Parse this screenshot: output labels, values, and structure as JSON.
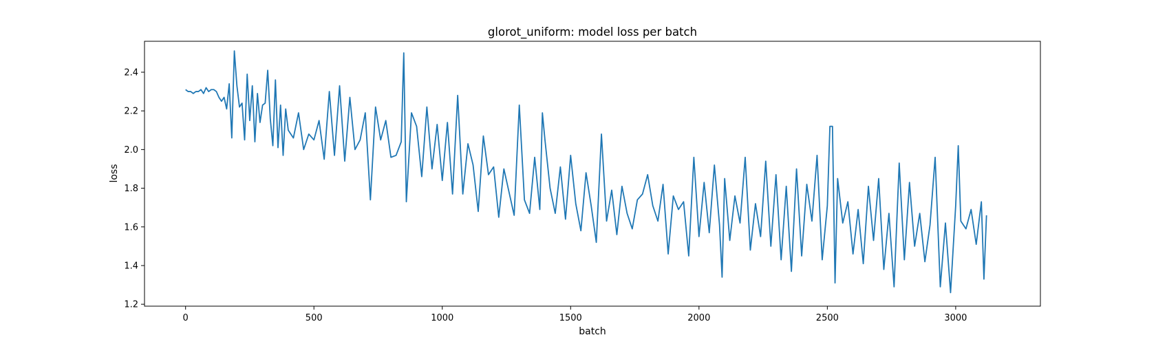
{
  "chart_data": {
    "type": "line",
    "title": "glorot_uniform: model loss per batch",
    "xlabel": "batch",
    "ylabel": "loss",
    "xlim": [
      -160,
      3330
    ],
    "ylim": [
      1.19,
      2.56
    ],
    "xticks": [
      0,
      500,
      1000,
      1500,
      2000,
      2500,
      3000
    ],
    "yticks": [
      1.2,
      1.4,
      1.6,
      1.8,
      2.0,
      2.2,
      2.4
    ],
    "grid": false,
    "legend": "none",
    "line_color": "#1f77b4",
    "series": [
      {
        "x": [
          0,
          10,
          20,
          30,
          40,
          50,
          60,
          70,
          80,
          90,
          100,
          110,
          120,
          130,
          140,
          150,
          160,
          170,
          180,
          190,
          200,
          210,
          220,
          230,
          240,
          250,
          260,
          270,
          280,
          290,
          300,
          310,
          320,
          330,
          340,
          350,
          360,
          370,
          380,
          390,
          400,
          420,
          440,
          460,
          480,
          500,
          520,
          540,
          560,
          580,
          600,
          620,
          640,
          660,
          680,
          700,
          720,
          740,
          760,
          780,
          800,
          820,
          840,
          850,
          860,
          880,
          900,
          920,
          940,
          960,
          980,
          1000,
          1020,
          1040,
          1060,
          1080,
          1100,
          1120,
          1140,
          1160,
          1180,
          1200,
          1220,
          1240,
          1260,
          1280,
          1300,
          1320,
          1340,
          1360,
          1380,
          1390,
          1400,
          1420,
          1440,
          1460,
          1480,
          1500,
          1520,
          1540,
          1560,
          1580,
          1600,
          1620,
          1640,
          1660,
          1680,
          1700,
          1720,
          1740,
          1760,
          1780,
          1800,
          1820,
          1840,
          1860,
          1880,
          1900,
          1920,
          1940,
          1960,
          1980,
          2000,
          2020,
          2040,
          2060,
          2080,
          2090,
          2100,
          2120,
          2140,
          2160,
          2180,
          2200,
          2220,
          2240,
          2260,
          2280,
          2300,
          2320,
          2340,
          2360,
          2380,
          2400,
          2420,
          2440,
          2460,
          2480,
          2500,
          2510,
          2520,
          2530,
          2540,
          2560,
          2580,
          2600,
          2620,
          2640,
          2660,
          2680,
          2700,
          2720,
          2740,
          2760,
          2780,
          2800,
          2820,
          2840,
          2860,
          2880,
          2900,
          2920,
          2940,
          2960,
          2980,
          3000,
          3010,
          3020,
          3040,
          3060,
          3080,
          3100,
          3110,
          3120
        ],
        "y": [
          2.31,
          2.3,
          2.3,
          2.29,
          2.3,
          2.3,
          2.31,
          2.29,
          2.32,
          2.3,
          2.31,
          2.31,
          2.3,
          2.27,
          2.25,
          2.27,
          2.21,
          2.34,
          2.06,
          2.51,
          2.33,
          2.22,
          2.24,
          2.05,
          2.39,
          2.15,
          2.33,
          2.04,
          2.29,
          2.14,
          2.23,
          2.24,
          2.41,
          2.16,
          2.02,
          2.36,
          2.01,
          2.23,
          1.97,
          2.21,
          2.1,
          2.06,
          2.19,
          2.0,
          2.08,
          2.05,
          2.15,
          1.95,
          2.3,
          1.97,
          2.33,
          1.94,
          2.27,
          2.0,
          2.05,
          2.19,
          1.74,
          2.22,
          2.05,
          2.15,
          1.96,
          1.97,
          2.04,
          2.5,
          1.73,
          2.19,
          2.12,
          1.86,
          2.22,
          1.9,
          2.13,
          1.84,
          2.14,
          1.77,
          2.28,
          1.77,
          2.03,
          1.92,
          1.68,
          2.07,
          1.87,
          1.91,
          1.65,
          1.9,
          1.78,
          1.66,
          2.23,
          1.74,
          1.67,
          1.96,
          1.69,
          2.19,
          2.05,
          1.8,
          1.67,
          1.91,
          1.64,
          1.97,
          1.72,
          1.58,
          1.88,
          1.71,
          1.52,
          2.08,
          1.63,
          1.79,
          1.56,
          1.81,
          1.67,
          1.59,
          1.74,
          1.77,
          1.87,
          1.71,
          1.63,
          1.82,
          1.46,
          1.76,
          1.69,
          1.73,
          1.45,
          1.96,
          1.55,
          1.83,
          1.57,
          1.92,
          1.61,
          1.34,
          1.85,
          1.53,
          1.76,
          1.62,
          1.96,
          1.48,
          1.72,
          1.55,
          1.94,
          1.5,
          1.87,
          1.43,
          1.81,
          1.37,
          1.9,
          1.45,
          1.82,
          1.63,
          1.97,
          1.43,
          1.71,
          2.12,
          2.12,
          1.31,
          1.85,
          1.62,
          1.73,
          1.46,
          1.69,
          1.41,
          1.81,
          1.53,
          1.85,
          1.38,
          1.67,
          1.29,
          1.93,
          1.43,
          1.83,
          1.5,
          1.67,
          1.42,
          1.61,
          1.96,
          1.29,
          1.62,
          1.26,
          1.71,
          2.02,
          1.63,
          1.59,
          1.69,
          1.51,
          1.73,
          1.33,
          1.66
        ]
      }
    ]
  }
}
